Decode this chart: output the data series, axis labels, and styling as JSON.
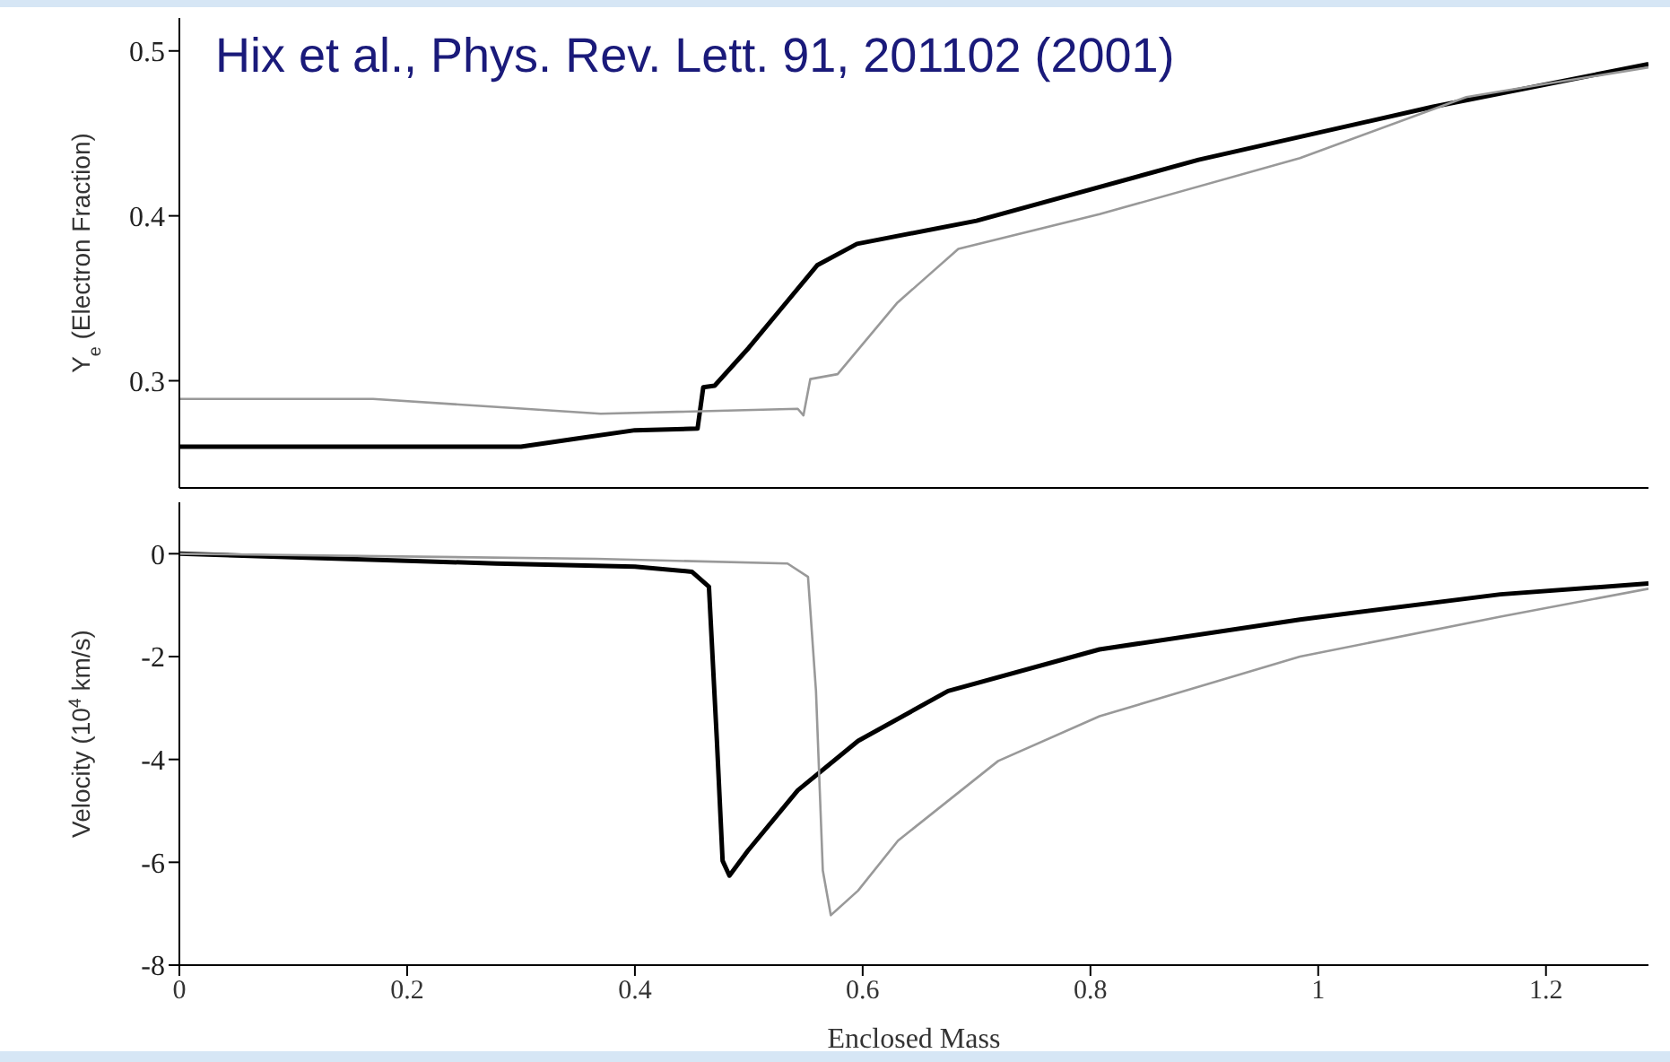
{
  "chart_data": [
    {
      "type": "line",
      "ylabel": "Y$_{e}$ (Electron Fraction)",
      "annotations": [
        "Hix et al., Phys. Rev. Lett. 91, 201102 (2001)"
      ],
      "xlim": [
        0,
        1.29
      ],
      "ylim": [
        0.235,
        0.52
      ],
      "yticks": [
        0.3,
        0.4,
        0.5
      ],
      "tick_labels": "y",
      "series": [
        {
          "color": "#000000",
          "x": [
            0,
            0.1,
            0.2,
            0.3,
            0.35,
            0.4,
            0.455,
            0.46,
            0.47,
            0.5,
            0.53,
            0.56,
            0.595,
            0.7,
            0.895,
            1.1,
            1.29
          ],
          "values": [
            0.26,
            0.26,
            0.26,
            0.26,
            0.265,
            0.27,
            0.271,
            0.296,
            0.297,
            0.32,
            0.345,
            0.37,
            0.383,
            0.397,
            0.434,
            0.466,
            0.492
          ]
        },
        {
          "color": "#999999",
          "x": [
            0,
            0.17,
            0.37,
            0.543,
            0.548,
            0.554,
            0.578,
            0.63,
            0.684,
            0.808,
            0.984,
            1.13,
            1.2,
            1.29
          ],
          "values": [
            0.289,
            0.289,
            0.28,
            0.283,
            0.279,
            0.301,
            0.304,
            0.347,
            0.38,
            0.401,
            0.435,
            0.472,
            0.48,
            0.49
          ]
        }
      ]
    },
    {
      "type": "line",
      "xlabel": "Enclosed Mass",
      "ylabel": "Velocity (10$^{4}$ km/s)",
      "xlim": [
        0,
        1.29
      ],
      "xticks": [
        0,
        0.2,
        0.4,
        0.6,
        0.8,
        1,
        1.2
      ],
      "ylim": [
        -8,
        1
      ],
      "yticks": [
        0,
        -2,
        -4,
        -6,
        -8
      ],
      "series": [
        {
          "color": "#000000",
          "x": [
            0,
            0.278,
            0.4,
            0.45,
            0.465,
            0.472,
            0.477,
            0.483,
            0.499,
            0.543,
            0.596,
            0.675,
            0.808,
            0.984,
            1.16,
            1.29
          ],
          "values": [
            0,
            -0.19,
            -0.25,
            -0.35,
            -0.64,
            -3.64,
            -5.97,
            -6.26,
            -5.78,
            -4.6,
            -3.64,
            -2.67,
            -1.86,
            -1.28,
            -0.79,
            -0.58
          ]
        },
        {
          "color": "#999999",
          "x": [
            0,
            0.366,
            0.534,
            0.552,
            0.559,
            0.565,
            0.572,
            0.596,
            0.631,
            0.719,
            0.808,
            0.984,
            1.161,
            1.29
          ],
          "values": [
            0,
            -0.1,
            -0.19,
            -0.45,
            -2.67,
            -6.16,
            -7.03,
            -6.55,
            -5.58,
            -4.03,
            -3.16,
            -2,
            -1.22,
            -0.68
          ]
        }
      ]
    }
  ]
}
